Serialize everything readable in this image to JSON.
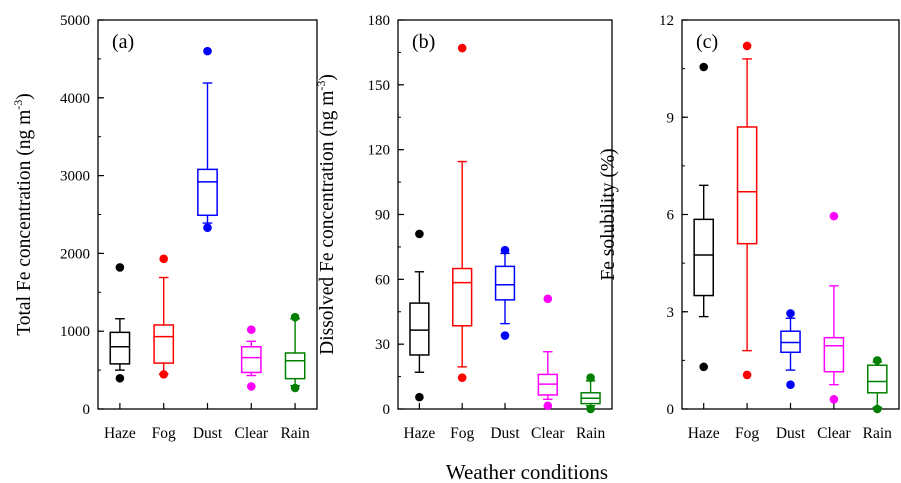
{
  "figure": {
    "xlabel": "Weather conditions"
  },
  "chart_data": [
    {
      "type": "box",
      "panel_label": "(a)",
      "ylabel_main": "Total Fe concentration (ng m",
      "ylabel_sup": "-3",
      "ylabel_end": ")",
      "ylim": [
        0,
        5000
      ],
      "yticks": [
        0,
        1000,
        2000,
        3000,
        4000,
        5000
      ],
      "yminor": 500,
      "categories": [
        "Haze",
        "Fog",
        "Dust",
        "Clear",
        "Rain"
      ],
      "colors": [
        "#000000",
        "#ff0000",
        "#0000ff",
        "#ff00ff",
        "#008000"
      ],
      "boxes": [
        {
          "whisker_low": 500,
          "q1": 580,
          "median": 800,
          "q3": 985,
          "whisker_high": 1160,
          "outliers": [
            1820,
            395
          ]
        },
        {
          "whisker_low": 450,
          "q1": 590,
          "median": 930,
          "q3": 1080,
          "whisker_high": 1690,
          "outliers": [
            1930,
            445
          ]
        },
        {
          "whisker_low": 2390,
          "q1": 2490,
          "median": 2920,
          "q3": 3080,
          "whisker_high": 4190,
          "outliers": [
            4600,
            2330
          ]
        },
        {
          "whisker_low": 430,
          "q1": 470,
          "median": 660,
          "q3": 800,
          "whisker_high": 870,
          "outliers": [
            1020,
            290
          ]
        },
        {
          "whisker_low": 300,
          "q1": 390,
          "median": 620,
          "q3": 720,
          "whisker_high": 1160,
          "outliers": [
            1180,
            270
          ]
        }
      ]
    },
    {
      "type": "box",
      "panel_label": "(b)",
      "ylabel_main": "Dissolved Fe concentration (ng m",
      "ylabel_sup": "-3",
      "ylabel_end": ")",
      "ylim": [
        0,
        180
      ],
      "yticks": [
        0,
        30,
        60,
        90,
        120,
        150,
        180
      ],
      "yminor": 15,
      "categories": [
        "Haze",
        "Fog",
        "Dust",
        "Clear",
        "Rain"
      ],
      "colors": [
        "#000000",
        "#ff0000",
        "#0000ff",
        "#ff00ff",
        "#008000"
      ],
      "boxes": [
        {
          "whisker_low": 17,
          "q1": 25,
          "median": 36.5,
          "q3": 49,
          "whisker_high": 63.5,
          "outliers": [
            81,
            5.5
          ]
        },
        {
          "whisker_low": 19.5,
          "q1": 38.5,
          "median": 58.5,
          "q3": 65,
          "whisker_high": 114.5,
          "outliers": [
            167,
            14.5
          ]
        },
        {
          "whisker_low": 39.5,
          "q1": 50.5,
          "median": 57.5,
          "q3": 66,
          "whisker_high": 72,
          "outliers": [
            73.5,
            34
          ]
        },
        {
          "whisker_low": 4.5,
          "q1": 6.5,
          "median": 11.5,
          "q3": 16,
          "whisker_high": 26.5,
          "outliers": [
            51,
            1.5
          ]
        },
        {
          "whisker_low": 1.5,
          "q1": 2.5,
          "median": 5,
          "q3": 7.5,
          "whisker_high": 13,
          "outliers": [
            14.5,
            0
          ]
        }
      ]
    },
    {
      "type": "box",
      "panel_label": "(c)",
      "ylabel_main": "Fe solubility (%)",
      "ylabel_sup": "",
      "ylabel_end": "",
      "ylim": [
        0,
        12
      ],
      "yticks": [
        0,
        3,
        6,
        9,
        12
      ],
      "yminor": 1.5,
      "categories": [
        "Haze",
        "Fog",
        "Dust",
        "Clear",
        "Rain"
      ],
      "colors": [
        "#000000",
        "#ff0000",
        "#0000ff",
        "#ff00ff",
        "#008000"
      ],
      "boxes": [
        {
          "whisker_low": 2.85,
          "q1": 3.5,
          "median": 4.75,
          "q3": 5.85,
          "whisker_high": 6.9,
          "outliers": [
            10.55,
            1.3
          ]
        },
        {
          "whisker_low": 1.8,
          "q1": 5.1,
          "median": 6.7,
          "q3": 8.7,
          "whisker_high": 10.8,
          "outliers": [
            11.2,
            1.05
          ]
        },
        {
          "whisker_low": 1.2,
          "q1": 1.75,
          "median": 2.05,
          "q3": 2.4,
          "whisker_high": 2.8,
          "outliers": [
            2.95,
            0.75
          ]
        },
        {
          "whisker_low": 0.75,
          "q1": 1.15,
          "median": 1.95,
          "q3": 2.2,
          "whisker_high": 3.8,
          "outliers": [
            5.95,
            0.3
          ]
        },
        {
          "whisker_low": 0.05,
          "q1": 0.5,
          "median": 0.85,
          "q3": 1.35,
          "whisker_high": 1.45,
          "outliers": [
            1.5,
            0.0
          ]
        }
      ]
    }
  ]
}
